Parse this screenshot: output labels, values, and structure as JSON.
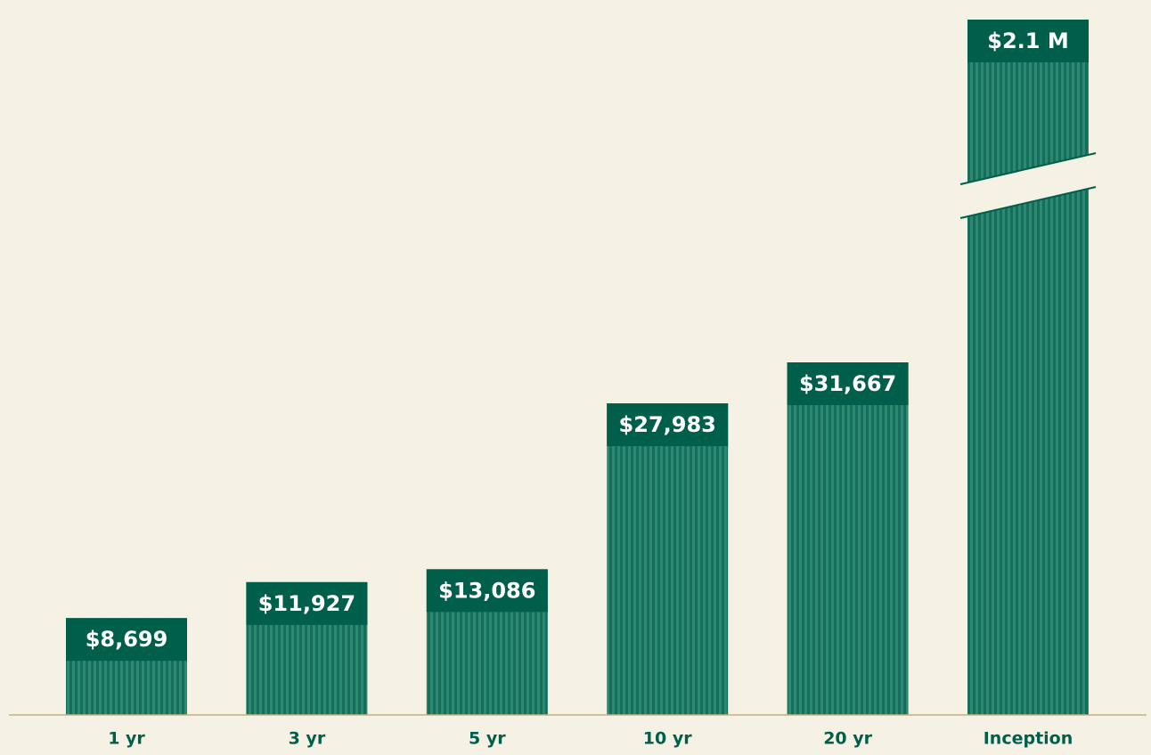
{
  "chart_data": {
    "type": "bar",
    "categories": [
      "1 yr",
      "3 yr",
      "5 yr",
      "10 yr",
      "20 yr",
      "Inception"
    ],
    "values": [
      8699,
      11927,
      13086,
      27983,
      31667,
      2100000
    ],
    "value_labels": [
      "$8,699",
      "$11,927",
      "$13,086",
      "$27,983",
      "$31,667",
      "$2.1 M"
    ],
    "color": "#1f7a65",
    "label_color": "#005f4b"
  }
}
